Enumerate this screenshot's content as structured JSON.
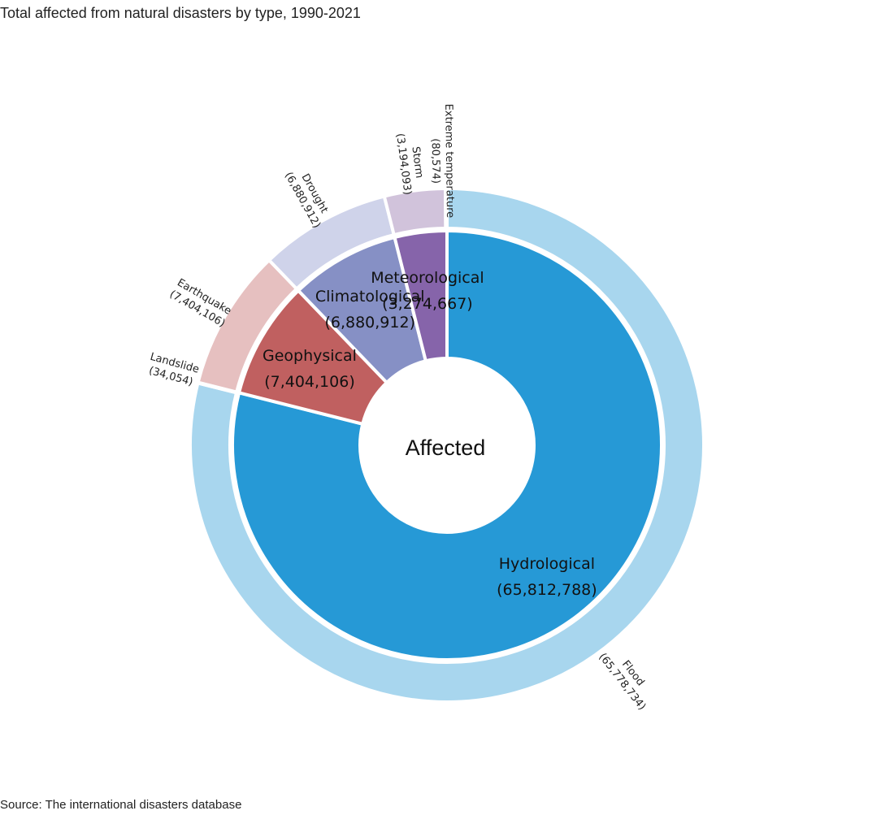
{
  "page": {
    "title": "Total affected from natural disasters by type, 1990-2021",
    "source": "Source: The international disasters database"
  },
  "chart_data": {
    "type": "sunburst",
    "title": "Total affected from natural disasters by type, 1990-2021",
    "center_label": "Affected",
    "inner_ring": [
      {
        "name": "Hydrological",
        "value": 65812788,
        "label": "(65,812,788)",
        "color": "#2699d6"
      },
      {
        "name": "Geophysical",
        "value": 7404106,
        "label": "(7,404,106)",
        "color": "#c06060"
      },
      {
        "name": "Climatological",
        "value": 6880912,
        "label": "(6,880,912)",
        "color": "#8690c5"
      },
      {
        "name": "Meteorological",
        "value": 3274667,
        "label": "(3,274,667)",
        "color": "#8664aa"
      }
    ],
    "outer_ring": [
      {
        "name": "Flood",
        "parent": "Hydrological",
        "value": 65778734,
        "label": "(65,778,734)",
        "color": "#a8d6ee"
      },
      {
        "name": "Landslide",
        "parent": "Hydrological",
        "value": 34054,
        "label": "(34,054)",
        "color": "#a8d6ee"
      },
      {
        "name": "Earthquake",
        "parent": "Geophysical",
        "value": 7404106,
        "label": "(7,404,106)",
        "color": "#e6c0c0"
      },
      {
        "name": "Drought",
        "parent": "Climatological",
        "value": 6880912,
        "label": "(6,880,912)",
        "color": "#cfd3ea"
      },
      {
        "name": "Storm",
        "parent": "Meteorological",
        "value": 3194093,
        "label": "(3,194,093)",
        "color": "#d1c3db"
      },
      {
        "name": "Extreme temperature",
        "parent": "Meteorological",
        "value": 80574,
        "label": "(80,574)",
        "color": "#d1c3db"
      }
    ]
  }
}
